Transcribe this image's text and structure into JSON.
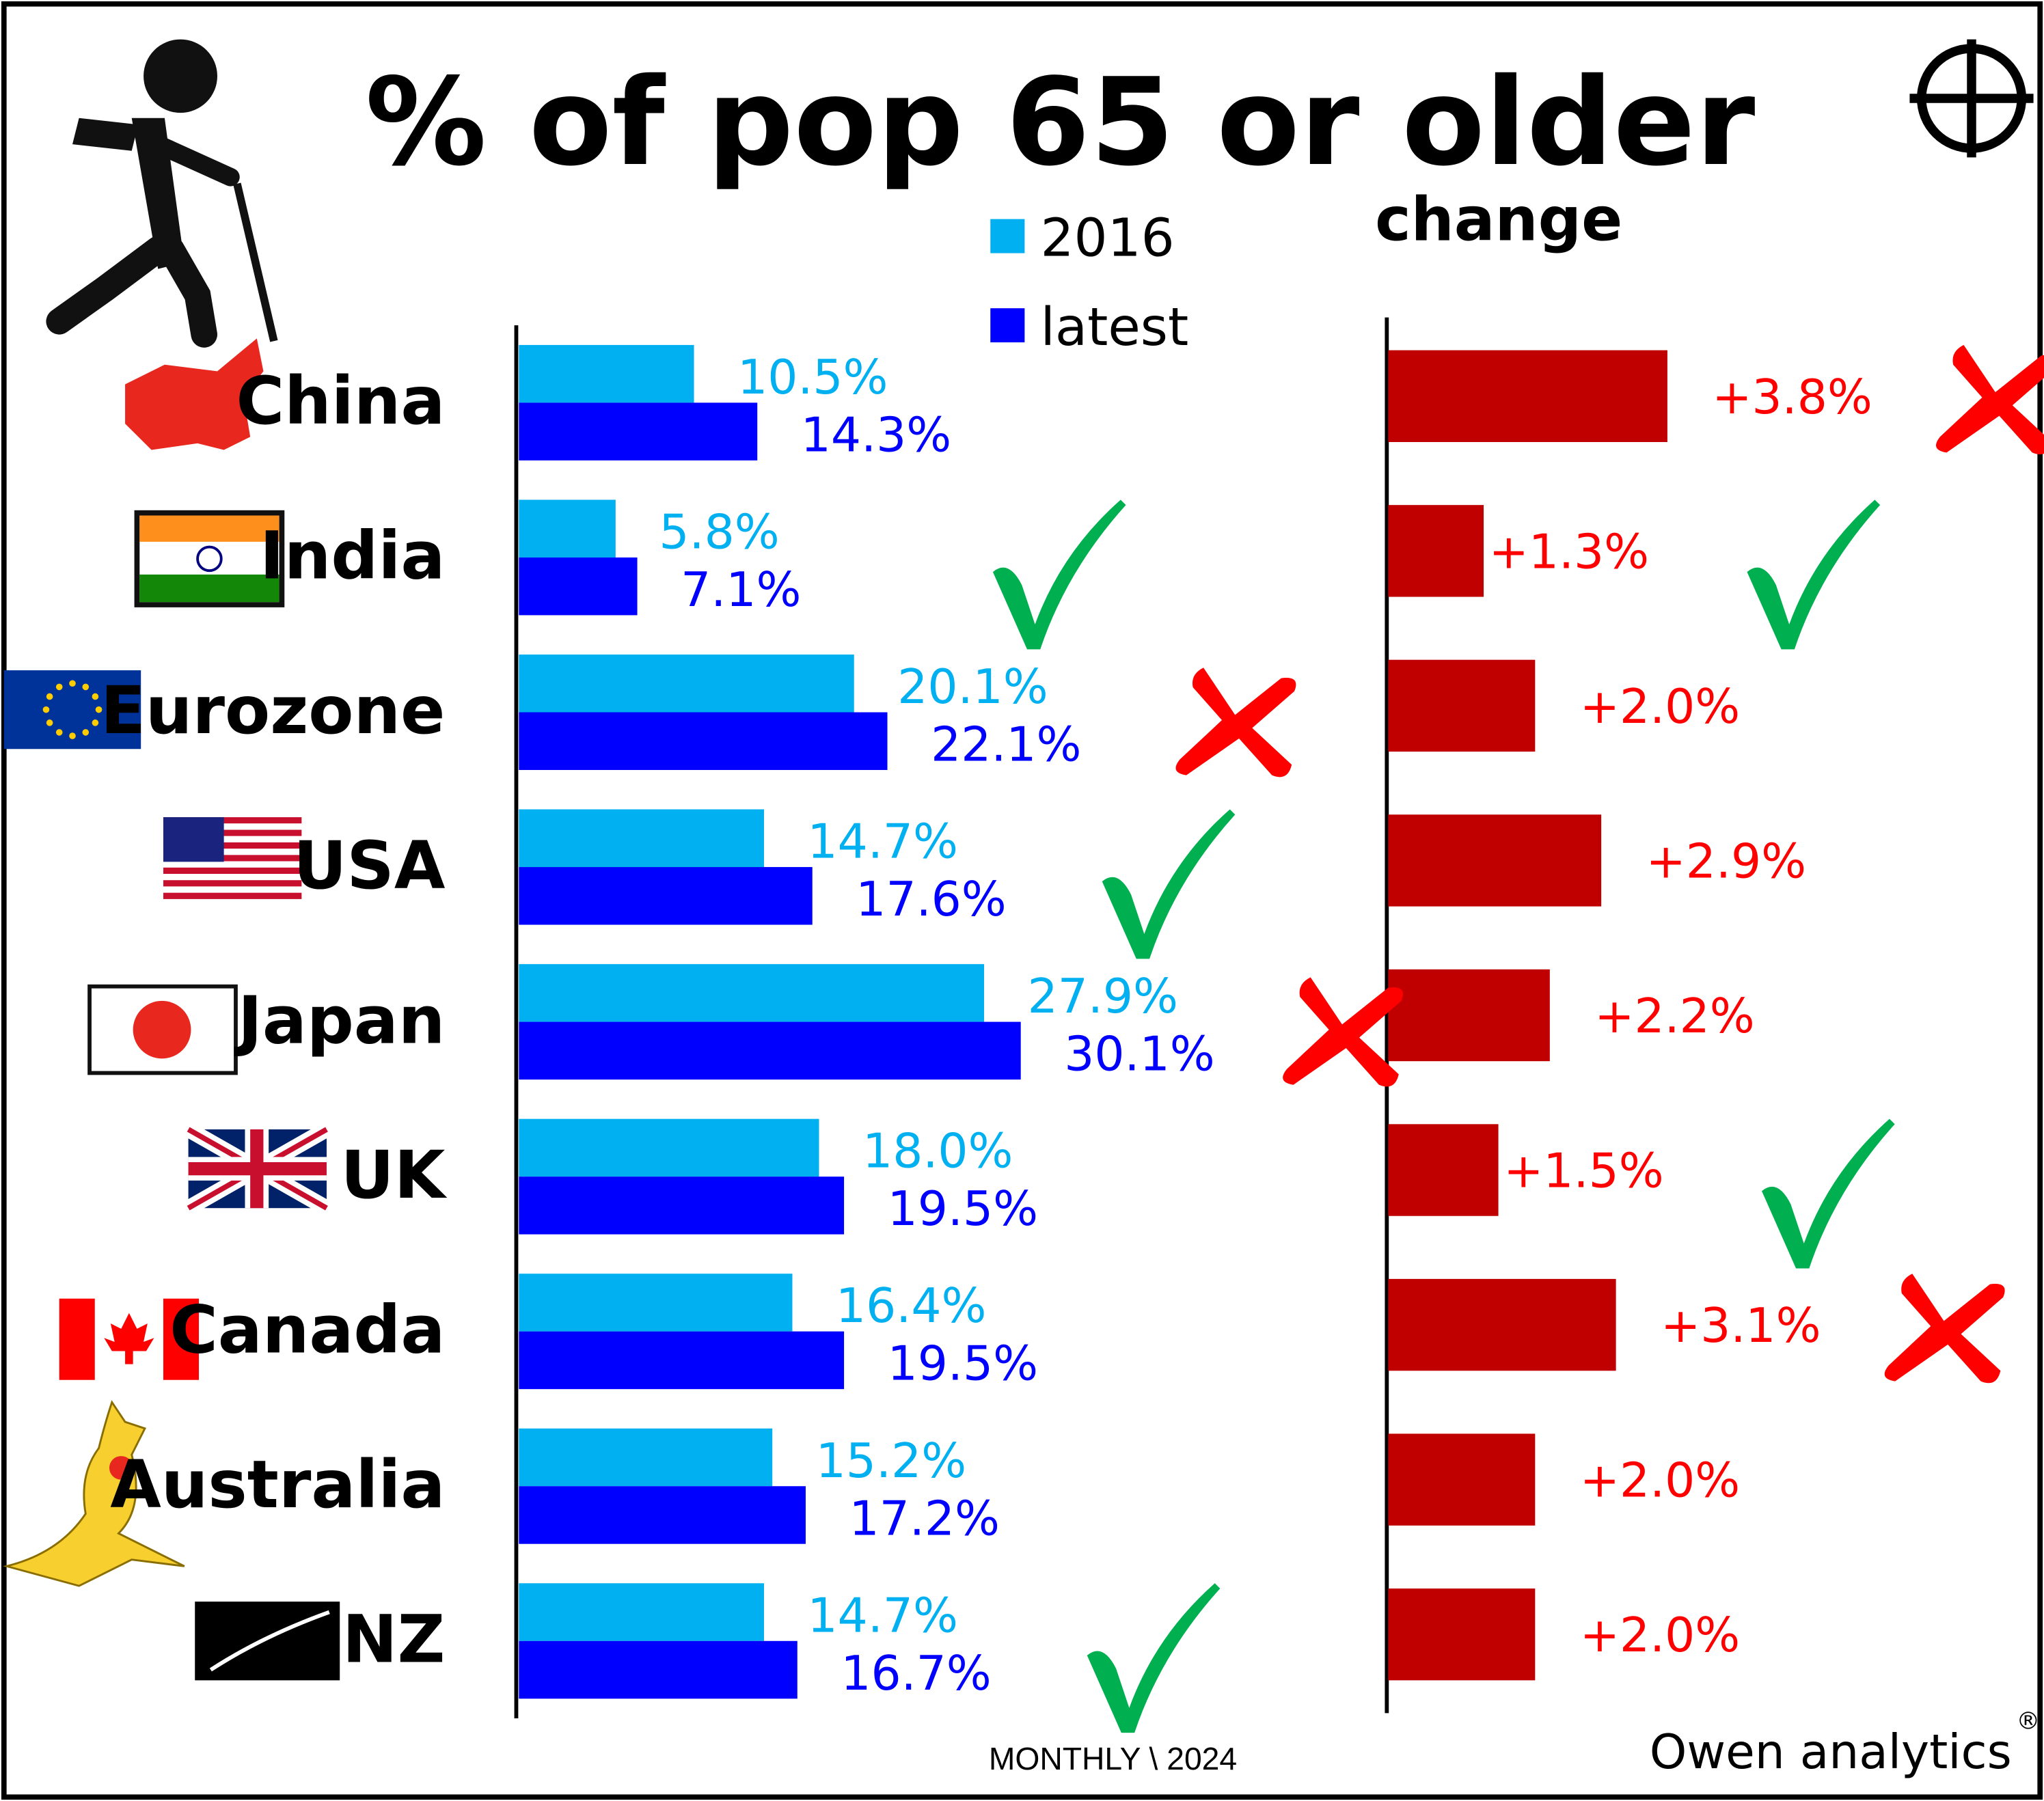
{
  "chart_data": {
    "type": "bar",
    "title": "% of pop 65 or older",
    "change_title": "change",
    "categories": [
      "China",
      "India",
      "Eurozone",
      "USA",
      "Japan",
      "UK",
      "Canada",
      "Australia",
      "NZ"
    ],
    "series": [
      {
        "name": "2016",
        "color": "#00b0f0",
        "values": [
          10.5,
          5.8,
          20.1,
          14.7,
          27.9,
          18.0,
          16.4,
          15.2,
          14.7
        ],
        "labels": [
          "10.5%",
          "5.8%",
          "20.1%",
          "14.7%",
          "27.9%",
          "18.0%",
          "16.4%",
          "15.2%",
          "14.7%"
        ]
      },
      {
        "name": "latest",
        "color": "#0000ff",
        "values": [
          14.3,
          7.1,
          22.1,
          17.6,
          30.1,
          19.5,
          19.5,
          17.2,
          16.7
        ],
        "labels": [
          "14.3%",
          "7.1%",
          "22.1%",
          "17.6%",
          "30.1%",
          "19.5%",
          "19.5%",
          "17.2%",
          "16.7%"
        ]
      }
    ],
    "change": {
      "color": "#c00000",
      "values": [
        3.8,
        1.3,
        2.0,
        2.9,
        2.2,
        1.5,
        3.1,
        2.0,
        2.0
      ],
      "labels": [
        "+3.8%",
        "+1.3%",
        "+2.0%",
        "+2.9%",
        "+2.2%",
        "+1.5%",
        "+3.1%",
        "+2.0%",
        "+2.0%"
      ]
    },
    "level_marks": [
      "",
      "check",
      "cross",
      "check",
      "cross",
      "",
      "",
      "",
      "check"
    ],
    "change_marks": [
      "cross",
      "check",
      "",
      "",
      "",
      "check",
      "cross",
      "",
      ""
    ],
    "legend": [
      "2016",
      "latest"
    ],
    "legend_placement": "top-center",
    "grid": false
  },
  "footer": {
    "source": "MONTHLY \\ 2024",
    "brand": "Owen analytics",
    "registered": "®"
  }
}
